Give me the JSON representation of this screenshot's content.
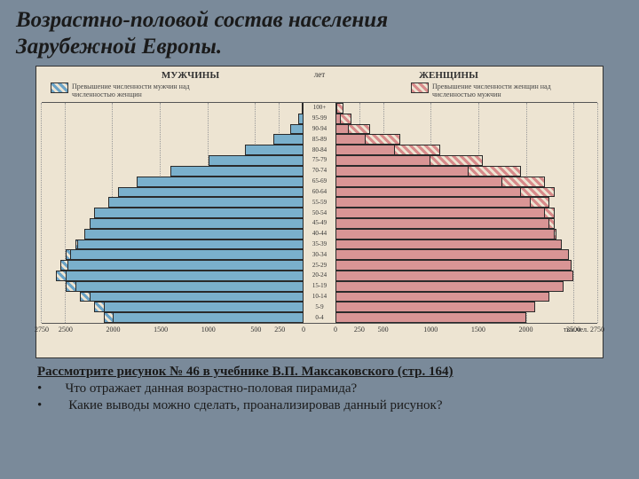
{
  "title_line1": "Возрастно-половой состав населения",
  "title_line2": "Зарубежной Европы.",
  "title_fontsize": 25,
  "chart": {
    "background": "#ede4d2",
    "male_label": "МУЖЧИНЫ",
    "female_label": "ЖЕНЩИНЫ",
    "age_header": "лет",
    "legend_male": "Превышение численности мужчин над численностью женщин",
    "legend_female": "Превышение численности женщин над численностью мужчин",
    "male_color": "#7ab0cc",
    "female_color": "#d99595",
    "male_hatch": "#6aa3c7",
    "female_hatch": "#d88a8a",
    "border_color": "#2a2a2a",
    "grid_color": "#999999",
    "x_max": 2750,
    "x_ticks": [
      0,
      250,
      500,
      1000,
      1500,
      2000,
      2500,
      2750
    ],
    "x_tick_labels": [
      "0",
      "250",
      "500",
      "1000",
      "1500",
      "2000",
      "2500",
      "2750"
    ],
    "x_unit": "тыс.чел.",
    "age_labels": [
      "100+",
      "95-99",
      "90-94",
      "85-89",
      "80-84",
      "75-79",
      "70-74",
      "65-69",
      "60-64",
      "55-59",
      "50-54",
      "45-49",
      "40-44",
      "35-39",
      "30-34",
      "25-29",
      "20-24",
      "15-19",
      "10-14",
      "5-9",
      "0-4"
    ],
    "rows": [
      {
        "m": 20,
        "f": 80,
        "me": 0,
        "fe": 60
      },
      {
        "m": 60,
        "f": 170,
        "me": 0,
        "fe": 110
      },
      {
        "m": 140,
        "f": 360,
        "me": 0,
        "fe": 220
      },
      {
        "m": 320,
        "f": 680,
        "me": 0,
        "fe": 360
      },
      {
        "m": 620,
        "f": 1100,
        "me": 0,
        "fe": 480
      },
      {
        "m": 1000,
        "f": 1550,
        "me": 0,
        "fe": 550
      },
      {
        "m": 1400,
        "f": 1950,
        "me": 0,
        "fe": 550
      },
      {
        "m": 1750,
        "f": 2200,
        "me": 0,
        "fe": 450
      },
      {
        "m": 1950,
        "f": 2300,
        "me": 0,
        "fe": 350
      },
      {
        "m": 2050,
        "f": 2250,
        "me": 0,
        "fe": 200
      },
      {
        "m": 2200,
        "f": 2300,
        "me": 0,
        "fe": 100
      },
      {
        "m": 2250,
        "f": 2300,
        "me": 0,
        "fe": 50
      },
      {
        "m": 2300,
        "f": 2320,
        "me": 0,
        "fe": 20
      },
      {
        "m": 2400,
        "f": 2380,
        "me": 20,
        "fe": 0
      },
      {
        "m": 2500,
        "f": 2450,
        "me": 50,
        "fe": 0
      },
      {
        "m": 2550,
        "f": 2480,
        "me": 70,
        "fe": 0
      },
      {
        "m": 2600,
        "f": 2500,
        "me": 100,
        "fe": 0
      },
      {
        "m": 2500,
        "f": 2400,
        "me": 100,
        "fe": 0
      },
      {
        "m": 2350,
        "f": 2250,
        "me": 100,
        "fe": 0
      },
      {
        "m": 2200,
        "f": 2100,
        "me": 100,
        "fe": 0
      },
      {
        "m": 2100,
        "f": 2000,
        "me": 100,
        "fe": 0
      }
    ]
  },
  "q_ref": "Рассмотрите  рисунок  № 46  в учебнике В.П. Максаковского (стр. 164)",
  "q1_bullet": "•",
  "q1": "Что отражает данная возрастно-половая пирамида?",
  "q2_bullet": "•",
  "q2": "Какие выводы можно сделать, проанализировав данный рисунок?"
}
